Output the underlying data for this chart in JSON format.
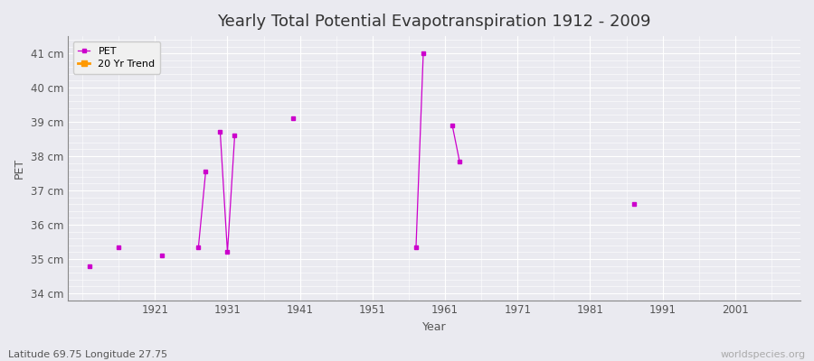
{
  "title": "Yearly Total Potential Evapotranspiration 1912 - 2009",
  "xlabel": "Year",
  "ylabel": "PET",
  "subtitle": "Latitude 69.75 Longitude 27.75",
  "watermark": "worldspecies.org",
  "ylim": [
    33.8,
    41.5
  ],
  "yticks": [
    34,
    35,
    36,
    37,
    38,
    39,
    40,
    41
  ],
  "ytick_labels": [
    "34 cm",
    "35 cm",
    "36 cm",
    "37 cm",
    "38 cm",
    "39 cm",
    "40 cm",
    "41 cm"
  ],
  "xticks": [
    1921,
    1931,
    1941,
    1951,
    1961,
    1971,
    1981,
    1991,
    2001
  ],
  "xlim": [
    1909,
    2010
  ],
  "pet_data": {
    "1912": 34.8,
    "1916": 35.35,
    "1922": 35.1,
    "1927": 35.35,
    "1928": 37.55,
    "1930": 38.7,
    "1931": 35.2,
    "1932": 38.6,
    "1940": 39.1,
    "1957": 35.35,
    "1958": 41.0,
    "1962": 38.9,
    "1963": 37.85,
    "1987": 36.6
  },
  "pet_color": "#cc00cc",
  "trend_color": "#ff9900",
  "bg_color": "#eaeaf0",
  "plot_bg_color": "#eaeaf0",
  "grid_color": "#ffffff",
  "legend_labels": [
    "PET",
    "20 Yr Trend"
  ]
}
